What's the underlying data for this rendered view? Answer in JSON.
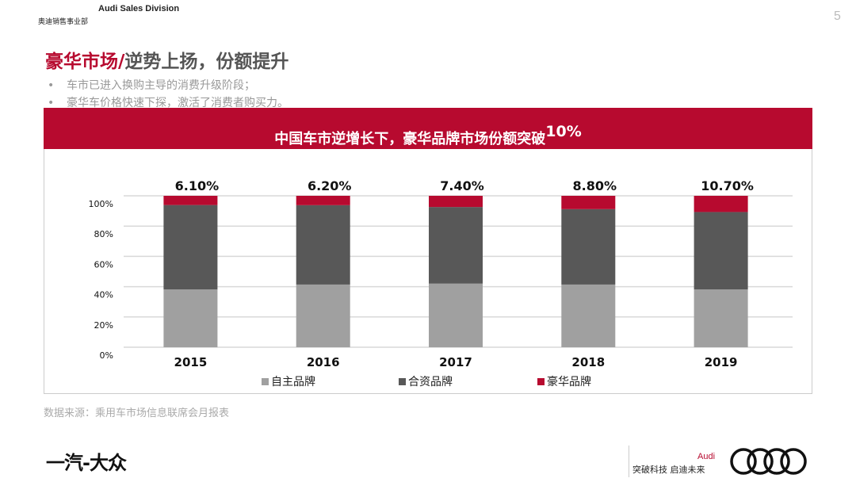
{
  "header": {
    "division_en": "Audi Sales Division",
    "division_cn": "奥迪销售事业部",
    "page_number": "5"
  },
  "title": {
    "highlight": "豪华市场/",
    "rest": "逆势上扬，份额提升"
  },
  "bullets": [
    "车市已进入换购主导的消费升级阶段；",
    "豪华车价格快速下探，激活了消费者购买力。"
  ],
  "chart_header": {
    "text": "中国车市逆增长下，豪华品牌市场份额突破",
    "superscript": "10%"
  },
  "source": "数据来源：乘用车市场信息联席会月报表",
  "footer": {
    "left_logo": "一汽-大众",
    "brand": "Audi",
    "slogan": "突破科技 启迪未来"
  },
  "colors": {
    "accent": "#b70a2f",
    "domestic": "#a0a0a0",
    "joint": "#585858",
    "luxury": "#b70a2f"
  },
  "chart_data": {
    "type": "bar",
    "stacked": true,
    "categories": [
      "2015",
      "2016",
      "2017",
      "2018",
      "2019"
    ],
    "series": [
      {
        "name": "自主品牌",
        "values": [
          38.2,
          41.4,
          42.0,
          41.4,
          38.2
        ]
      },
      {
        "name": "合资品牌",
        "values": [
          55.7,
          52.4,
          50.6,
          49.8,
          51.1
        ]
      },
      {
        "name": "豪华品牌",
        "values": [
          6.1,
          6.2,
          7.4,
          8.8,
          10.7
        ]
      }
    ],
    "data_labels": [
      "6.10%",
      "6.20%",
      "7.40%",
      "8.80%",
      "10.70%"
    ],
    "yticks": [
      "0%",
      "20%",
      "40%",
      "60%",
      "80%",
      "100%"
    ],
    "ylim": [
      0,
      100
    ],
    "grid": true,
    "legend": "bottom"
  }
}
